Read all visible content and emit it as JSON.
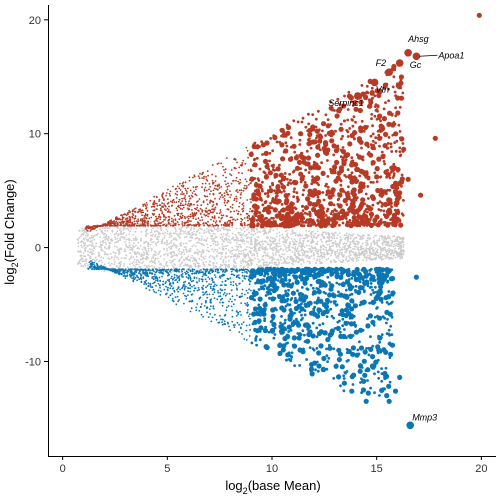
{
  "chart_data": {
    "type": "scatter",
    "title": "",
    "xlabel": {
      "base": "log",
      "sub": "2",
      "rest": "(base Mean)"
    },
    "ylabel": {
      "base": "log",
      "sub": "2",
      "rest": "(Fold Change)"
    },
    "xlim": [
      -0.7,
      20.7
    ],
    "ylim": [
      -18.3,
      21.3
    ],
    "x_ticks": [
      0,
      5,
      10,
      15,
      20
    ],
    "y_ticks": [
      -10,
      0,
      10,
      20
    ],
    "grid": false,
    "legend": "none",
    "colors": {
      "up": "#b63a25",
      "down": "#0a77b4",
      "ns": "#cccccc"
    },
    "labeled_genes": [
      {
        "name": "Ahsg",
        "x": 16.5,
        "y": 17.1
      },
      {
        "name": "Apoa1",
        "x": 16.9,
        "y": 16.8
      },
      {
        "name": "Gc",
        "x": 16.1,
        "y": 16.2
      },
      {
        "name": "F2",
        "x": 15.6,
        "y": 15.4
      },
      {
        "name": "Vtn",
        "x": 14.9,
        "y": 14.5
      },
      {
        "name": "Serpinc1",
        "x": 14.1,
        "y": 13.3
      },
      {
        "name": "Mmp3",
        "x": 16.6,
        "y": -15.6
      }
    ],
    "highlight_points": [
      {
        "x": 19.9,
        "y": 20.4,
        "group": "up"
      },
      {
        "x": 17.8,
        "y": 9.6,
        "group": "up"
      },
      {
        "x": 17.1,
        "y": 4.6,
        "group": "up"
      },
      {
        "x": 16.5,
        "y": 6.0,
        "group": "up"
      },
      {
        "x": 16.1,
        "y": 4.8,
        "group": "up"
      },
      {
        "x": 15.3,
        "y": 8.0,
        "group": "up"
      },
      {
        "x": 15.4,
        "y": 4.9,
        "group": "up"
      },
      {
        "x": 15.2,
        "y": 10.3,
        "group": "up"
      },
      {
        "x": 16.1,
        "y": -0.6,
        "group": "ns"
      },
      {
        "x": 16.9,
        "y": -2.6,
        "group": "down"
      },
      {
        "x": 16.1,
        "y": -11.4,
        "group": "down"
      },
      {
        "x": 15.9,
        "y": -12.6,
        "group": "down"
      },
      {
        "x": 15.6,
        "y": -13.5,
        "group": "down"
      },
      {
        "x": 15.1,
        "y": -9.0,
        "group": "down"
      },
      {
        "x": 13.9,
        "y": -11.2,
        "group": "down"
      },
      {
        "x": 14.5,
        "y": -13.5,
        "group": "down"
      }
    ],
    "distribution": {
      "x_min": 0.7,
      "ns_band": 1.9,
      "upper_envelope_slope": 1.0,
      "lower_envelope_slope": -0.95
    }
  }
}
